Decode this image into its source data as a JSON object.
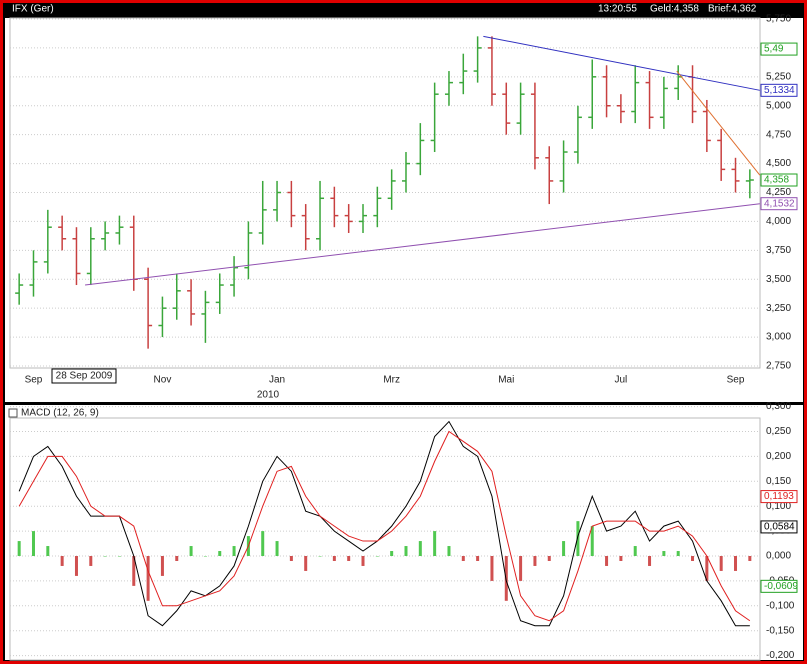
{
  "chart_data": [
    {
      "type": "ohlc",
      "title": "IFX (Ger)",
      "time": "13:20:55",
      "bid": "Geld:4,358",
      "ask": "Brief:4,362",
      "year_label": "2010",
      "tooltip": "28 Sep 2009",
      "categories": [
        null,
        "Sep",
        null,
        null,
        null,
        null,
        null,
        null,
        null,
        null,
        "Nov",
        null,
        null,
        null,
        null,
        null,
        null,
        null,
        "Jan",
        null,
        null,
        null,
        null,
        null,
        null,
        null,
        "Mrz",
        null,
        null,
        null,
        null,
        null,
        null,
        null,
        "Mai",
        null,
        null,
        null,
        null,
        null,
        null,
        null,
        "Jul",
        null,
        null,
        null,
        null,
        null,
        null,
        null,
        "Sep",
        null
      ],
      "open": [
        3.38,
        3.45,
        3.65,
        3.95,
        3.85,
        3.55,
        3.85,
        3.9,
        3.95,
        3.5,
        3.1,
        3.25,
        3.4,
        3.2,
        3.3,
        3.45,
        3.6,
        3.9,
        4.1,
        4.25,
        4.05,
        3.85,
        4.2,
        4.05,
        4.0,
        4.05,
        4.2,
        4.35,
        4.5,
        4.7,
        5.1,
        5.2,
        5.3,
        5.5,
        5.1,
        4.85,
        5.1,
        4.55,
        4.35,
        4.6,
        4.9,
        5.25,
        5.0,
        4.95,
        5.2,
        4.9,
        5.15,
        5.25,
        4.95,
        4.7,
        4.45,
        4.35
      ],
      "high": [
        3.55,
        3.75,
        4.1,
        4.05,
        3.95,
        3.95,
        4.0,
        4.05,
        4.05,
        3.6,
        3.35,
        3.55,
        3.5,
        3.4,
        3.55,
        3.7,
        4.0,
        4.35,
        4.35,
        4.35,
        4.15,
        4.35,
        4.3,
        4.15,
        4.15,
        4.3,
        4.45,
        4.6,
        4.85,
        5.2,
        5.3,
        5.45,
        5.6,
        5.6,
        5.2,
        5.2,
        5.2,
        4.65,
        4.7,
        5.0,
        5.4,
        5.35,
        5.1,
        5.35,
        5.3,
        5.25,
        5.35,
        5.35,
        5.05,
        4.8,
        4.55,
        4.45
      ],
      "low": [
        3.28,
        3.35,
        3.55,
        3.75,
        3.45,
        3.45,
        3.75,
        3.8,
        3.4,
        2.9,
        3.0,
        3.15,
        3.1,
        2.95,
        3.2,
        3.35,
        3.5,
        3.8,
        4.0,
        3.95,
        3.75,
        3.75,
        3.95,
        3.9,
        3.9,
        3.95,
        4.1,
        4.25,
        4.4,
        4.6,
        5.0,
        5.1,
        5.2,
        5.0,
        4.75,
        4.75,
        4.45,
        4.15,
        4.25,
        4.5,
        4.8,
        4.9,
        4.85,
        4.85,
        4.8,
        4.8,
        5.05,
        4.85,
        4.6,
        4.35,
        4.25,
        4.2
      ],
      "close": [
        3.45,
        3.65,
        3.95,
        3.85,
        3.55,
        3.85,
        3.9,
        3.95,
        3.5,
        3.1,
        3.25,
        3.4,
        3.2,
        3.3,
        3.45,
        3.6,
        3.9,
        4.1,
        4.25,
        4.05,
        3.85,
        4.2,
        4.05,
        4.0,
        4.05,
        4.2,
        4.35,
        4.5,
        4.7,
        5.1,
        5.2,
        5.3,
        5.5,
        5.1,
        4.85,
        5.1,
        4.55,
        4.35,
        4.6,
        4.9,
        5.25,
        5.0,
        4.95,
        5.2,
        4.9,
        5.15,
        5.25,
        4.95,
        4.7,
        4.45,
        4.35,
        4.358
      ],
      "up_color": "#3aa63a",
      "down_color": "#c84040",
      "ylim": [
        2.75,
        5.75
      ],
      "yticks": [
        {
          "value": 2.75,
          "label": "2,750"
        },
        {
          "value": 3.0,
          "label": "3,000"
        },
        {
          "value": 3.25,
          "label": "3,250"
        },
        {
          "value": 3.5,
          "label": "3,500"
        },
        {
          "value": 3.75,
          "label": "3,750"
        },
        {
          "value": 4.0,
          "label": "4,000"
        },
        {
          "value": 4.25,
          "label": "4,250"
        },
        {
          "value": 4.5,
          "label": "4,500"
        },
        {
          "value": 4.75,
          "label": "4,750"
        },
        {
          "value": 5.0,
          "label": "5,000"
        },
        {
          "value": 5.25,
          "label": "5,250"
        },
        {
          "value": 5.5,
          "label": "5,500"
        },
        {
          "value": 5.75,
          "label": "5,750"
        }
      ],
      "grid": true,
      "trendlines": [
        {
          "color": "#3030c0",
          "x": [
            32.4,
            51.7
          ],
          "y": [
            5.6,
            5.1334
          ]
        },
        {
          "color": "#9050b0",
          "x": [
            4.6,
            51.7
          ],
          "y": [
            3.45,
            4.1532
          ]
        },
        {
          "color": "#e07030",
          "x": [
            45.9,
            51.7
          ],
          "y": [
            5.3,
            4.4
          ]
        }
      ],
      "markers": [
        {
          "value": 5.49,
          "label": "5,49",
          "color": "#20a020"
        },
        {
          "value": 5.1334,
          "label": "5,1334",
          "color": "#3030c0"
        },
        {
          "value": 4.358,
          "label": "4,358",
          "color": "#20a020"
        },
        {
          "value": 4.1532,
          "label": "4,1532",
          "color": "#9050b0"
        }
      ]
    },
    {
      "type": "macd",
      "title": "MACD (12, 26, 9)",
      "series": [
        {
          "color": "#000000",
          "values": [
            0.13,
            0.2,
            0.22,
            0.18,
            0.12,
            0.08,
            0.08,
            0.08,
            0.0,
            -0.12,
            -0.14,
            -0.11,
            -0.07,
            -0.08,
            -0.06,
            -0.02,
            0.06,
            0.15,
            0.2,
            0.17,
            0.09,
            0.08,
            0.05,
            0.03,
            0.01,
            0.03,
            0.06,
            0.1,
            0.15,
            0.24,
            0.27,
            0.22,
            0.2,
            0.12,
            -0.05,
            -0.13,
            -0.14,
            -0.14,
            -0.08,
            0.04,
            0.12,
            0.05,
            0.06,
            0.09,
            0.03,
            0.06,
            0.07,
            0.03,
            -0.05,
            -0.09,
            -0.14,
            -0.14
          ]
        },
        {
          "color": "#e02020",
          "values": [
            0.1,
            0.15,
            0.2,
            0.2,
            0.16,
            0.1,
            0.08,
            0.08,
            0.06,
            -0.03,
            -0.1,
            -0.1,
            -0.09,
            -0.08,
            -0.07,
            -0.04,
            0.02,
            0.1,
            0.17,
            0.18,
            0.12,
            0.08,
            0.06,
            0.04,
            0.03,
            0.03,
            0.05,
            0.08,
            0.12,
            0.19,
            0.25,
            0.23,
            0.21,
            0.17,
            0.04,
            -0.08,
            -0.12,
            -0.13,
            -0.11,
            -0.03,
            0.06,
            0.07,
            0.07,
            0.07,
            0.05,
            0.05,
            0.06,
            0.04,
            0.0,
            -0.06,
            -0.11,
            -0.13
          ]
        }
      ],
      "histogram": {
        "up_color": "#50c850",
        "down_color": "#d05050",
        "values": [
          0.03,
          0.05,
          0.02,
          -0.02,
          -0.04,
          -0.02,
          0,
          0,
          -0.06,
          -0.09,
          -0.04,
          -0.01,
          0.02,
          0,
          0.01,
          0.02,
          0.04,
          0.05,
          0.03,
          -0.01,
          -0.03,
          0,
          -0.01,
          -0.01,
          -0.02,
          0,
          0.01,
          0.02,
          0.03,
          0.05,
          0.02,
          -0.01,
          -0.01,
          -0.05,
          -0.09,
          -0.05,
          -0.02,
          -0.01,
          0.03,
          0.07,
          0.06,
          -0.02,
          -0.01,
          0.02,
          -0.02,
          0.01,
          0.01,
          -0.01,
          -0.05,
          -0.03,
          -0.03,
          -0.01
        ]
      },
      "ylim": [
        -0.2,
        0.3
      ],
      "yticks": [
        {
          "value": -0.2,
          "label": "-0,200"
        },
        {
          "value": -0.15,
          "label": "-0,150"
        },
        {
          "value": -0.1,
          "label": "-0,100"
        },
        {
          "value": -0.05,
          "label": "-0,050"
        },
        {
          "value": 0,
          "label": "0,000"
        },
        {
          "value": 0.05,
          "label": "0,050"
        },
        {
          "value": 0.1,
          "label": "0,100"
        },
        {
          "value": 0.15,
          "label": "0,150"
        },
        {
          "value": 0.2,
          "label": "0,200"
        },
        {
          "value": 0.25,
          "label": "0,250"
        },
        {
          "value": 0.3,
          "label": "0,300"
        }
      ],
      "grid": true,
      "markers": [
        {
          "value": 0.1193,
          "label": "0,1193",
          "color": "#e02020"
        },
        {
          "value": 0.0584,
          "label": "0,0584",
          "color": "#000000"
        },
        {
          "value": -0.0609,
          "label": "-0,0609",
          "color": "#20a020"
        }
      ]
    }
  ]
}
